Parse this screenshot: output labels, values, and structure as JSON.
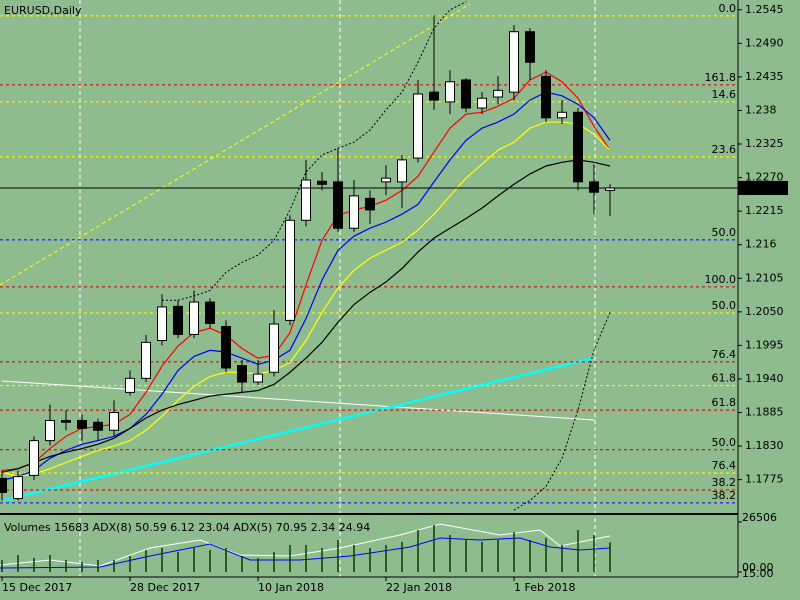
{
  "chart_data": {
    "type": "candlestick",
    "title": "EURUSD,Daily",
    "categories": [
      "15 Dec 2017",
      null,
      null,
      null,
      null,
      null,
      null,
      null,
      "28 Dec 2017",
      null,
      null,
      null,
      null,
      null,
      null,
      null,
      "10 Jan 2018",
      null,
      null,
      null,
      null,
      null,
      null,
      null,
      "22 Jan 2018",
      null,
      null,
      null,
      null,
      null,
      null,
      null,
      "1 Feb 2018",
      null,
      null,
      null,
      null,
      null,
      null
    ],
    "open": [
      1.1777,
      1.1744,
      1.1782,
      1.1839,
      1.1872,
      1.1872,
      1.1869,
      1.1856,
      1.1918,
      1.1941,
      1.2003,
      1.2059,
      1.2013,
      1.2066,
      1.2026,
      1.1962,
      1.1935,
      1.1951,
      1.2036,
      1.22,
      1.2264,
      1.2263,
      1.2187,
      1.2236,
      1.2263,
      1.2263,
      1.2302,
      1.241,
      1.2394,
      1.243,
      1.2384,
      1.2402,
      1.241,
      1.2509,
      1.2436,
      1.2368,
      1.2377,
      1.2263,
      1.2249
    ],
    "high": [
      1.179,
      1.179,
      1.1846,
      1.1898,
      1.1889,
      1.1882,
      1.1875,
      1.1905,
      1.1954,
      1.2012,
      1.2079,
      1.2069,
      1.2085,
      1.2072,
      1.2036,
      1.1971,
      1.1971,
      1.2053,
      1.2208,
      1.2299,
      1.2279,
      1.2318,
      1.2266,
      1.2249,
      1.229,
      1.2307,
      1.243,
      1.2536,
      1.2446,
      1.2433,
      1.241,
      1.2436,
      1.252,
      1.2515,
      1.2446,
      1.2397,
      1.2384,
      1.2292,
      1.2259
    ],
    "low": [
      1.1741,
      1.1741,
      1.1774,
      1.1831,
      1.1856,
      1.1839,
      1.1839,
      1.1846,
      1.1913,
      1.1935,
      1.1995,
      1.2007,
      1.2007,
      1.2023,
      1.1951,
      1.1918,
      1.193,
      1.1944,
      1.2028,
      1.219,
      1.2249,
      1.2181,
      1.2181,
      1.2194,
      1.2241,
      1.222,
      1.2295,
      1.2381,
      1.2374,
      1.2377,
      1.2374,
      1.239,
      1.2397,
      1.243,
      1.2361,
      1.2358,
      1.2249,
      1.221,
      1.2207
    ],
    "close": [
      1.1754,
      1.178,
      1.1839,
      1.1872,
      1.1869,
      1.1859,
      1.1856,
      1.1885,
      1.1941,
      1.2,
      1.2058,
      1.2013,
      1.2066,
      1.2031,
      1.1958,
      1.1935,
      1.1948,
      1.203,
      1.22,
      1.2266,
      1.2259,
      1.2187,
      1.224,
      1.2217,
      1.2269,
      1.2299,
      1.2407,
      1.2397,
      1.2427,
      1.2384,
      1.24,
      1.2413,
      1.2509,
      1.2459,
      1.2368,
      1.2377,
      1.2263,
      1.2246,
      1.2253
    ],
    "up_color": "#ffffff",
    "down_color": "#000000",
    "series": [
      {
        "color": "#ff0000",
        "values": [
          1.179,
          1.1793,
          1.1803,
          1.1826,
          1.1846,
          1.1859,
          1.1862,
          1.1866,
          1.1882,
          1.1918,
          1.1961,
          1.1994,
          1.2016,
          1.2023,
          1.2012,
          1.199,
          1.1974,
          1.1979,
          1.2016,
          1.2094,
          1.2167,
          1.2208,
          1.2217,
          1.2223,
          1.2233,
          1.2249,
          1.2272,
          1.2312,
          1.2351,
          1.2374,
          1.2377,
          1.2387,
          1.24,
          1.243,
          1.2443,
          1.2427,
          1.24,
          1.2354,
          1.2315
        ]
      },
      {
        "color": "#0000ff",
        "values": [
          1.1774,
          1.178,
          1.179,
          1.181,
          1.1823,
          1.1833,
          1.1839,
          1.1846,
          1.1859,
          1.1882,
          1.1915,
          1.1954,
          1.1977,
          1.1987,
          1.1984,
          1.1974,
          1.1964,
          1.1971,
          1.1987,
          1.2039,
          1.2102,
          1.2151,
          1.2174,
          1.2187,
          1.2197,
          1.221,
          1.2226,
          1.2263,
          1.2299,
          1.2331,
          1.2351,
          1.2361,
          1.2374,
          1.2397,
          1.241,
          1.2404,
          1.239,
          1.2368,
          1.2331
        ]
      },
      {
        "color": "#ffff00",
        "values": [
          1.1787,
          1.178,
          1.1784,
          1.1793,
          1.1803,
          1.1813,
          1.1823,
          1.183,
          1.1839,
          1.1856,
          1.1879,
          1.1905,
          1.1928,
          1.1944,
          1.1951,
          1.1951,
          1.1948,
          1.1954,
          1.1967,
          1.2003,
          1.2049,
          1.2089,
          1.2118,
          1.2138,
          1.2151,
          1.2164,
          1.2184,
          1.221,
          1.224,
          1.2269,
          1.2292,
          1.2315,
          1.2328,
          1.2351,
          1.2361,
          1.2361,
          1.2358,
          1.2341,
          1.2315
        ]
      },
      {
        "color": "#000000",
        "values": [
          1.1787,
          1.1793,
          1.1803,
          1.1813,
          1.182,
          1.1826,
          1.1833,
          1.1843,
          1.1859,
          1.1876,
          1.1889,
          1.1898,
          1.1905,
          1.1912,
          1.1915,
          1.1918,
          1.1921,
          1.1931,
          1.1951,
          1.1974,
          1.2,
          1.2033,
          1.2062,
          1.2082,
          1.2099,
          1.2121,
          1.2148,
          1.2171,
          1.2187,
          1.2203,
          1.222,
          1.224,
          1.2259,
          1.2276,
          1.2289,
          1.2295,
          1.2299,
          1.2295,
          1.2289
        ]
      },
      {
        "color": "#000000",
        "dotted": true,
        "values": [
          null,
          null,
          null,
          null,
          null,
          null,
          null,
          null,
          null,
          null,
          1.2069,
          1.2069,
          1.2076,
          1.2085,
          1.2115,
          1.2131,
          1.2143,
          1.2167,
          1.2217,
          1.2279,
          1.2307,
          1.2318,
          1.2328,
          1.2348,
          1.2381,
          1.241,
          1.2459,
          1.2515,
          1.2545,
          1.2558,
          null,
          null,
          null,
          null,
          null,
          null,
          null,
          null,
          null
        ]
      },
      {
        "color": "#000000",
        "dotted": true,
        "values": [
          null,
          null,
          null,
          null,
          null,
          null,
          null,
          null,
          null,
          null,
          null,
          null,
          null,
          null,
          null,
          null,
          null,
          null,
          null,
          null,
          null,
          null,
          null,
          null,
          null,
          null,
          null,
          null,
          null,
          null,
          null,
          null,
          1.1725,
          1.1741,
          1.1764,
          1.181,
          1.1889,
          1.1987,
          1.2049
        ]
      }
    ],
    "ylim": [
      1.1722,
      1.2561
    ],
    "yticks": [
      1.2545,
      {
        "value": 1.249,
        "label": "1.2490"
      },
      1.2435,
      1.238,
      1.2325,
      {
        "value": 1.227,
        "label": "1.2270"
      },
      1.2215,
      1.216,
      1.2105,
      {
        "value": 1.205,
        "label": "1.2050"
      },
      1.1995,
      {
        "value": 1.194,
        "label": "1.1940"
      },
      1.1885,
      {
        "value": 1.183,
        "label": "1.1830"
      },
      1.1775
    ],
    "last_price": 1.2253,
    "levels": [
      {
        "label": "0.0",
        "value": 1.2535,
        "color": "#ffff00"
      },
      {
        "label": "161.8",
        "value": 1.2422,
        "color": "#cc0000"
      },
      {
        "label": "14.6",
        "value": 1.2394,
        "color": "#ffff00"
      },
      {
        "label": "23.6",
        "value": 1.2304,
        "color": "#ffff00"
      },
      {
        "label": "50.0",
        "value": 1.2168,
        "color": "#0000ff"
      },
      {
        "label": "100.0",
        "value": 1.2091,
        "color": "#cc0000"
      },
      {
        "label": "50.0",
        "value": 1.2048,
        "color": "#ffff00"
      },
      {
        "label": "76.4",
        "value": 1.1968,
        "color": "#cc0000"
      },
      {
        "label": "61.8",
        "value": 1.1929,
        "color": "#ffff00"
      },
      {
        "label": "61.8",
        "value": 1.1889,
        "color": "#cc0000"
      },
      {
        "label": "50.0",
        "value": 1.1824,
        "color": "#cc0000"
      },
      {
        "label": "76.4",
        "value": 1.1786,
        "color": "#ffff00"
      },
      {
        "label": "38.2",
        "value": 1.1758,
        "color": "#cc0000"
      },
      {
        "label": "38.2",
        "value": 1.1737,
        "color": "#0000ff"
      }
    ],
    "volume": {
      "label": "Volumes 15683 ADX(8) 50.59 6.12 23.04 ADX(5) 70.95 2.34 24.94",
      "color": "#004000",
      "values": [
        6360,
        9010,
        7420,
        9010,
        6360,
        5300,
        6360,
        6360,
        8480,
        11660,
        12720,
        10600,
        12720,
        11660,
        12720,
        8480,
        7420,
        10600,
        14310,
        14310,
        12720,
        16960,
        14310,
        12720,
        14310,
        15900,
        22260,
        24910,
        19610,
        16960,
        15900,
        16960,
        21200,
        16960,
        18020,
        14310,
        22260,
        19610,
        15683
      ],
      "ylim": [
        0,
        26506
      ],
      "yticks": [
        26506,
        {
          "value": 0,
          "label": "00.00"
        }
      ],
      "adx_label": "15.00"
    }
  }
}
